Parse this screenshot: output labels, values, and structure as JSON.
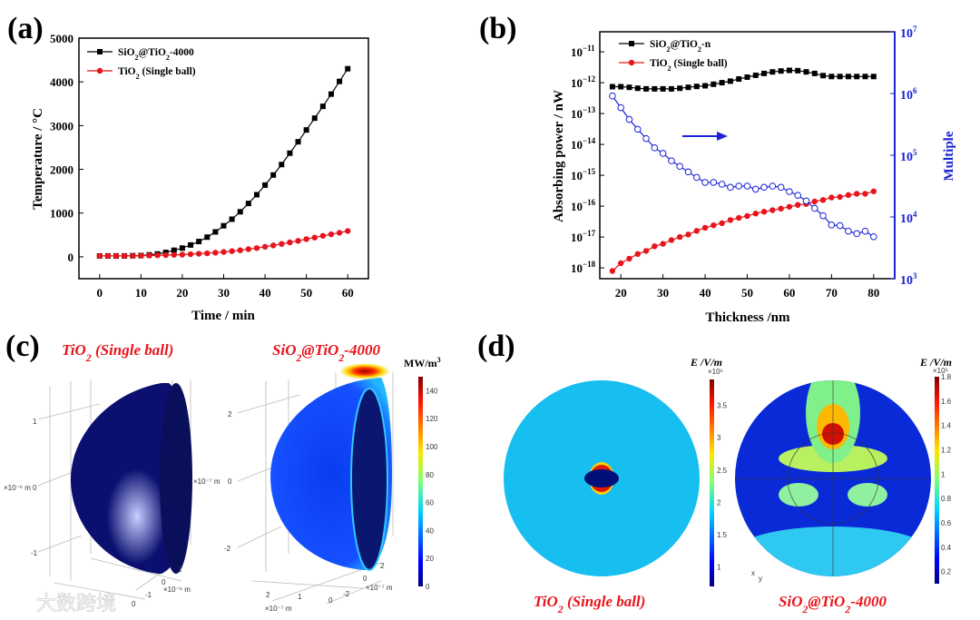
{
  "panels": {
    "a": "(a)",
    "b": "(b)",
    "c": "(c)",
    "d": "(d)"
  },
  "chart_data": [
    {
      "type": "line",
      "title": "",
      "xlabel": "Time / min",
      "ylabel": "Temperature / °C",
      "xlim": [
        -5,
        65
      ],
      "ylim": [
        -500,
        5000
      ],
      "xticks": [
        0,
        10,
        20,
        30,
        40,
        50,
        60
      ],
      "yticks": [
        0,
        1000,
        2000,
        3000,
        4000,
        5000
      ],
      "legend_position": "top-left",
      "x": [
        0,
        2,
        4,
        6,
        8,
        10,
        12,
        14,
        16,
        18,
        20,
        22,
        24,
        26,
        28,
        30,
        32,
        34,
        36,
        38,
        40,
        42,
        44,
        46,
        48,
        50,
        52,
        54,
        56,
        58,
        60
      ],
      "series": [
        {
          "name": "SiO2@TiO2-4000",
          "color": "#000000",
          "marker": "square",
          "values": [
            20,
            20,
            20,
            20,
            25,
            30,
            45,
            65,
            100,
            150,
            200,
            270,
            350,
            450,
            570,
            710,
            860,
            1030,
            1220,
            1420,
            1640,
            1870,
            2110,
            2370,
            2630,
            2900,
            3170,
            3440,
            3720,
            4010,
            4300
          ]
        },
        {
          "name": "TiO2 (Single ball)",
          "color": "#e8141c",
          "marker": "circle",
          "values": [
            20,
            20,
            20,
            20,
            22,
            25,
            30,
            35,
            40,
            45,
            50,
            60,
            70,
            80,
            95,
            110,
            130,
            150,
            175,
            200,
            230,
            260,
            295,
            330,
            365,
            405,
            440,
            480,
            515,
            550,
            590
          ]
        }
      ]
    },
    {
      "type": "line",
      "title": "",
      "xlabel": "Thickness /nm",
      "ylabel": "Absorbing power / nW",
      "y2label": "Multiple",
      "xlim": [
        15,
        85
      ],
      "ylim_log10": [
        -18.35,
        -10.35
      ],
      "y2lim_log10": [
        3,
        7
      ],
      "xticks": [
        20,
        30,
        40,
        50,
        60,
        70,
        80
      ],
      "yticks_log10": [
        -18,
        -17,
        -16,
        -15,
        -14,
        -13,
        -12,
        -11
      ],
      "y2ticks_log10": [
        3,
        4,
        5,
        6,
        7
      ],
      "legend_position": "top-left",
      "annotation": "blue arrow pointing right (Multiple on right axis)",
      "x": [
        18,
        20,
        22,
        24,
        26,
        28,
        30,
        32,
        34,
        36,
        38,
        40,
        42,
        44,
        46,
        48,
        50,
        52,
        54,
        56,
        58,
        60,
        62,
        64,
        66,
        68,
        70,
        72,
        74,
        76,
        78,
        80
      ],
      "series": [
        {
          "name": "SiO2@TiO2-n",
          "color": "#000000",
          "marker": "square",
          "axis": "left",
          "log10_values": [
            -12.13,
            -12.13,
            -12.15,
            -12.18,
            -12.2,
            -12.2,
            -12.2,
            -12.2,
            -12.18,
            -12.15,
            -12.12,
            -12.1,
            -12.05,
            -12.0,
            -11.95,
            -11.88,
            -11.82,
            -11.76,
            -11.7,
            -11.65,
            -11.62,
            -11.6,
            -11.61,
            -11.65,
            -11.7,
            -11.77,
            -11.8,
            -11.8,
            -11.8,
            -11.8,
            -11.8,
            -11.8
          ]
        },
        {
          "name": "TiO2 (Single ball)",
          "color": "#e8141c",
          "marker": "circle",
          "axis": "left",
          "log10_values": [
            -18.1,
            -17.85,
            -17.7,
            -17.55,
            -17.45,
            -17.3,
            -17.22,
            -17.1,
            -17.0,
            -16.92,
            -16.8,
            -16.7,
            -16.62,
            -16.55,
            -16.45,
            -16.38,
            -16.32,
            -16.24,
            -16.18,
            -16.13,
            -16.08,
            -16.02,
            -15.96,
            -15.93,
            -15.85,
            -15.8,
            -15.72,
            -15.7,
            -15.64,
            -15.6,
            -15.6,
            -15.52
          ]
        },
        {
          "name": "Multiple",
          "color": "#1a22d6",
          "marker": "open-circle",
          "axis": "right",
          "log10_values": [
            5.96,
            5.77,
            5.58,
            5.42,
            5.27,
            5.12,
            5.03,
            4.91,
            4.82,
            4.73,
            4.64,
            4.56,
            4.56,
            4.53,
            4.48,
            4.5,
            4.5,
            4.45,
            4.48,
            4.5,
            4.48,
            4.41,
            4.35,
            4.26,
            4.14,
            4.02,
            3.87,
            3.86,
            3.77,
            3.73,
            3.77,
            3.68
          ]
        }
      ]
    }
  ],
  "panel_c": {
    "left_title": "TiO2 (Single ball)",
    "right_title": "SiO2@TiO2-4000",
    "colorbar_unit": "MW/m",
    "colorbar_unit_sup": "3",
    "colorbar_ticks": [
      "0",
      "20",
      "40",
      "60",
      "80",
      "100",
      "120",
      "140"
    ],
    "left_axis_ticks": [
      "1",
      "0",
      "-1"
    ],
    "left_axis_unit": "×10⁻⁶ m",
    "left_floor_ticks": [
      "1",
      "0",
      "-1",
      "0"
    ],
    "right_axis_ticks": [
      "2",
      "0",
      "-2"
    ],
    "right_axis_unit": "×10⁻⁷ m",
    "right_floor_ticks_y": [
      "2",
      "0",
      "-2"
    ],
    "right_floor_ticks_x": [
      "2",
      "1",
      "0"
    ]
  },
  "panel_d": {
    "left_label": "TiO2 (Single ball)",
    "right_label": "SiO2@TiO2-4000",
    "colorbar_unit": "E /V/m",
    "left_colorbar_ticks": [
      "1",
      "1.5",
      "2",
      "2.5",
      "3",
      "3.5"
    ],
    "left_colorbar_range": [
      0.7,
      3.9
    ],
    "right_colorbar_ticks": [
      "0.2",
      "0.4",
      "0.6",
      "0.8",
      "1",
      "1.2",
      "1.4",
      "1.6",
      "1.8"
    ],
    "right_colorbar_range": [
      0.1,
      1.8
    ],
    "colorbar_multiplier": "×10⁵",
    "axis_x": "x",
    "axis_y": "y"
  },
  "watermark": "大数跨境",
  "colors": {
    "black": "#000000",
    "red": "#e8141c",
    "blue": "#1a22d6",
    "navy": "#0a0f6e"
  }
}
